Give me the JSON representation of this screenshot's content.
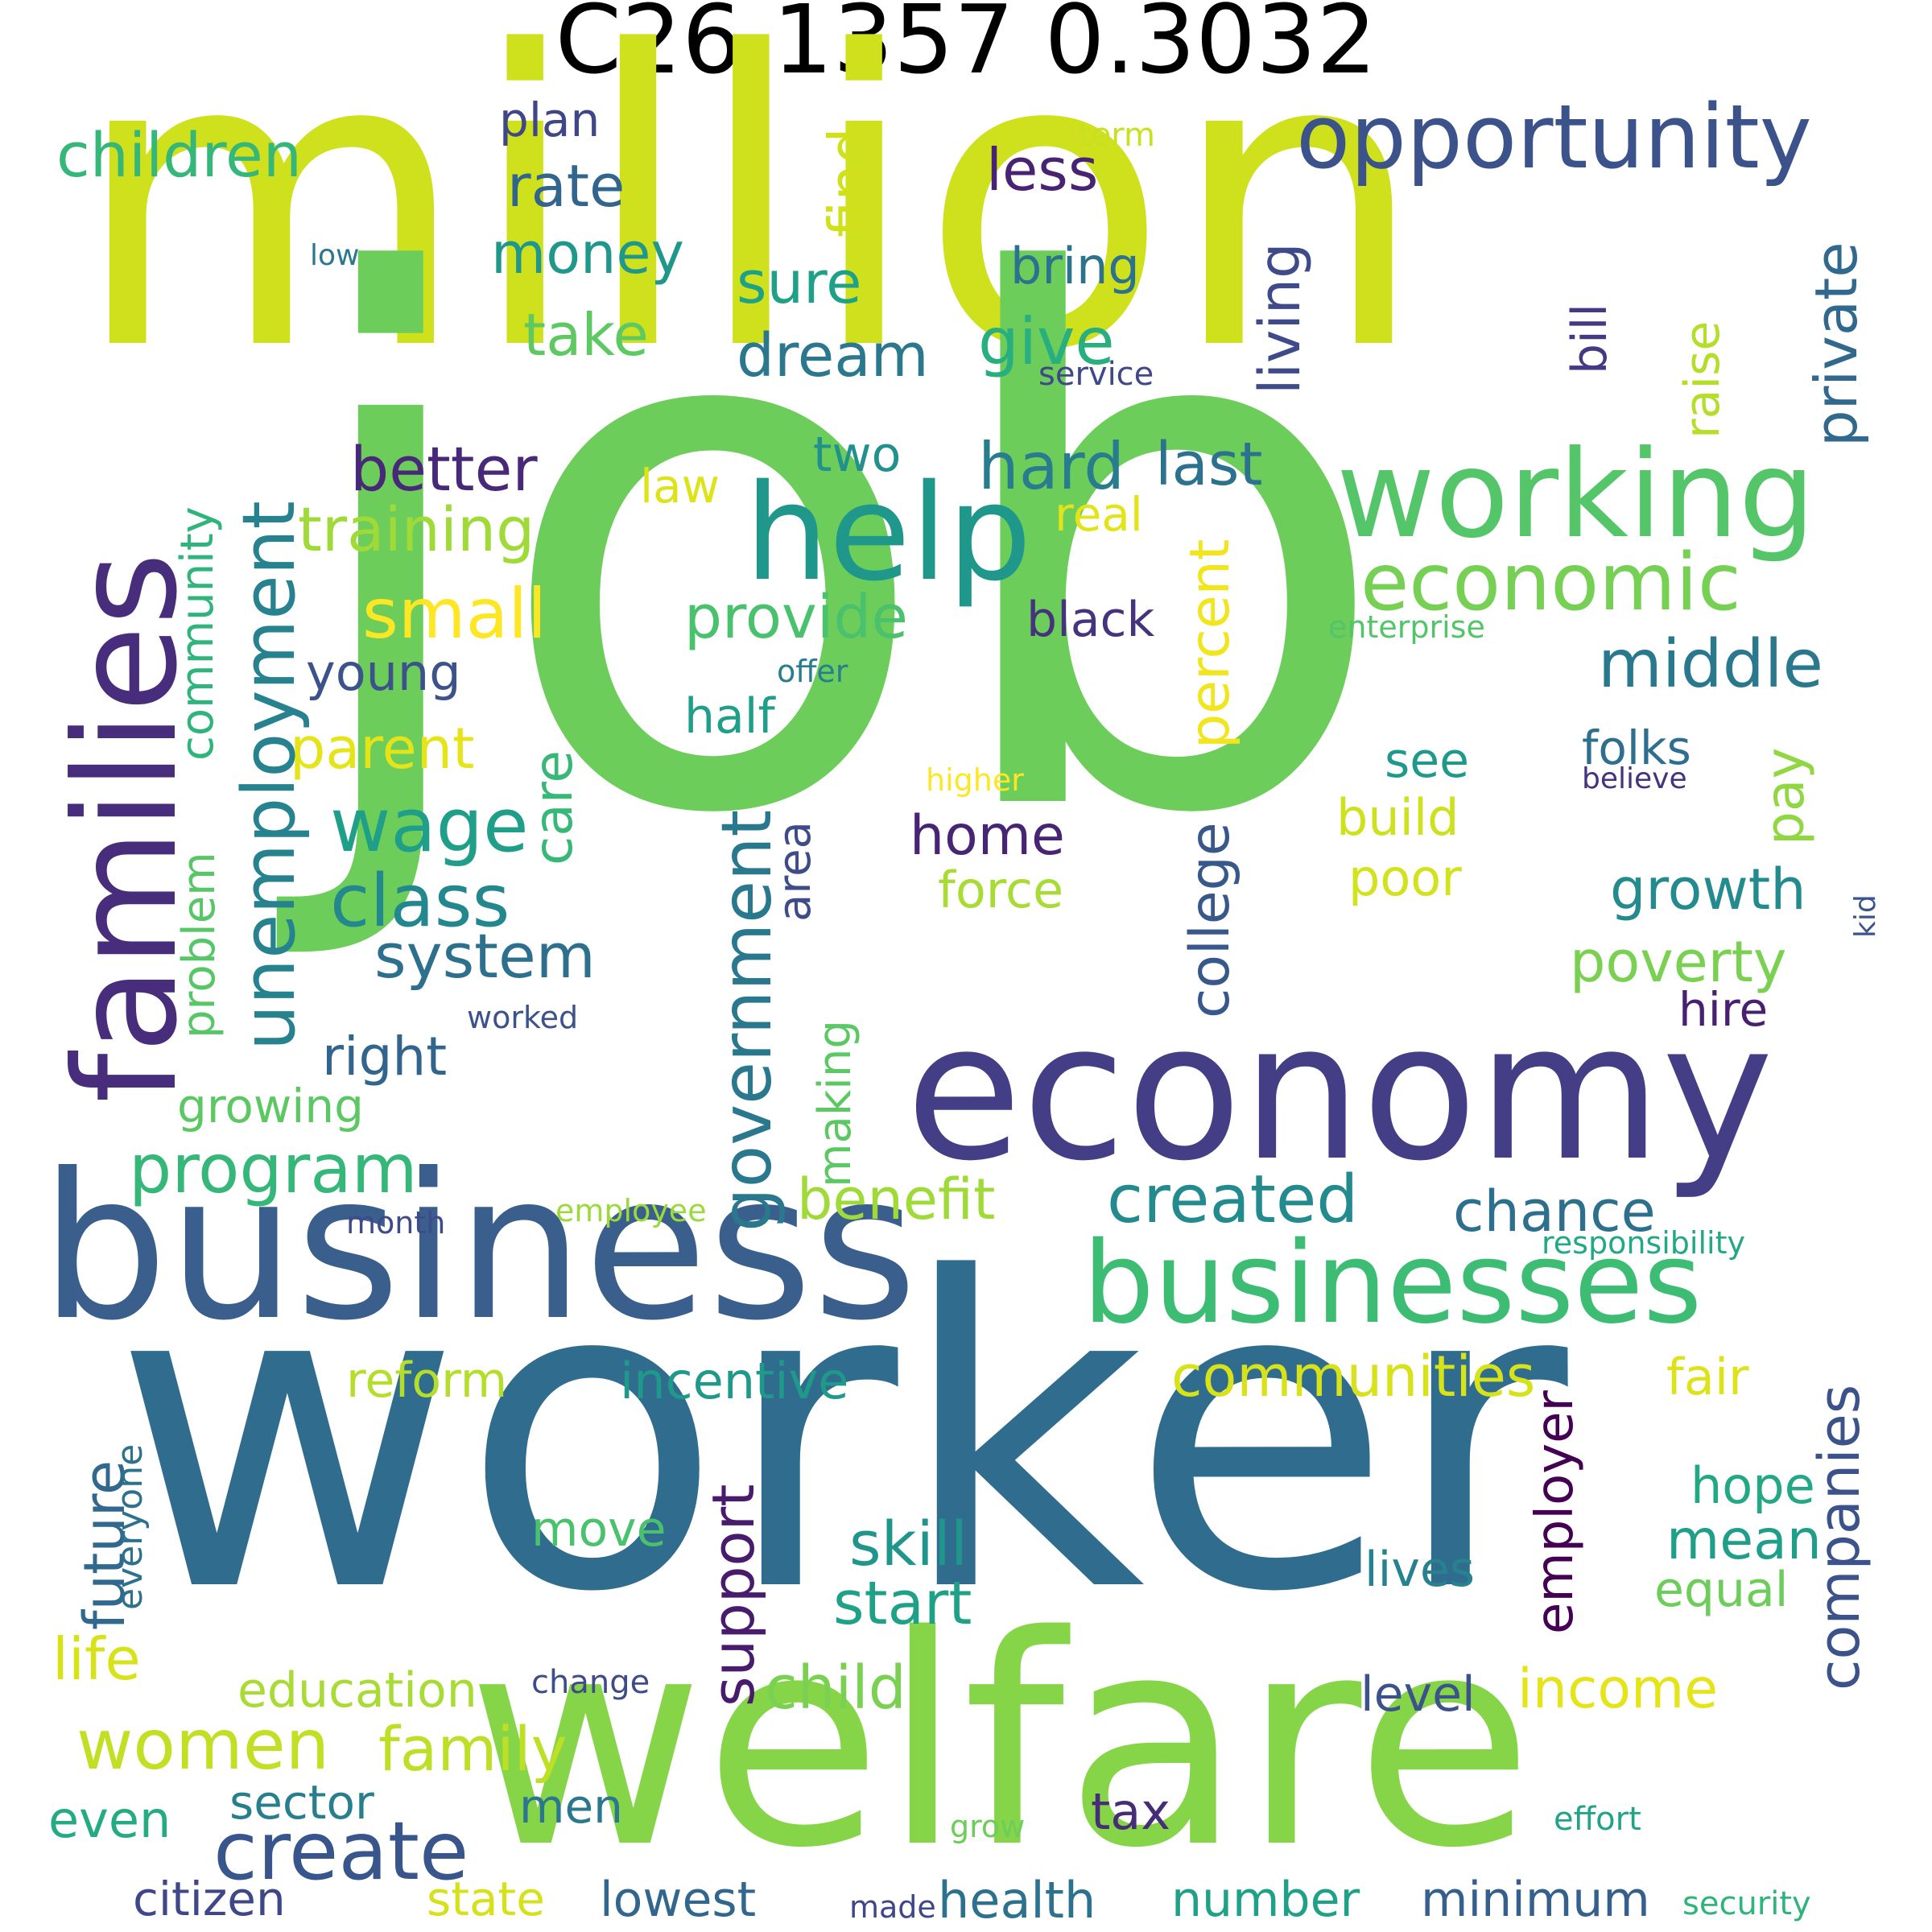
{
  "title": "C26 1357 0.3032",
  "words": [
    {
      "id": "million",
      "text": "million",
      "color": "#cfe11c"
    },
    {
      "id": "job",
      "text": "job",
      "color": "#6ccd5a"
    },
    {
      "id": "worker",
      "text": "worker",
      "color": "#306c8e"
    },
    {
      "id": "welfare",
      "text": "welfare",
      "color": "#86d549"
    },
    {
      "id": "business",
      "text": "business",
      "color": "#3a5f8d"
    },
    {
      "id": "economy",
      "text": "economy",
      "color": "#433e85"
    },
    {
      "id": "businesses",
      "text": "businesses",
      "color": "#3dbc74"
    },
    {
      "id": "families",
      "text": "families",
      "color": "#472d7b"
    },
    {
      "id": "help",
      "text": "help",
      "color": "#1f978b"
    },
    {
      "id": "working",
      "text": "working",
      "color": "#54c568"
    },
    {
      "id": "opportunity",
      "text": "opportunity",
      "color": "#3b528b"
    },
    {
      "id": "economic",
      "text": "economic",
      "color": "#75d054"
    },
    {
      "id": "unemployment",
      "text": "unemployment",
      "color": "#26828e"
    },
    {
      "id": "government",
      "text": "government",
      "color": "#2a788e"
    },
    {
      "id": "middle",
      "text": "middle",
      "color": "#2a788e"
    },
    {
      "id": "created",
      "text": "created",
      "color": "#238a8d"
    },
    {
      "id": "program",
      "text": "program",
      "color": "#35b779"
    },
    {
      "id": "create",
      "text": "create",
      "color": "#39568c"
    },
    {
      "id": "communities",
      "text": "communities",
      "color": "#d8e219"
    },
    {
      "id": "children",
      "text": "children",
      "color": "#35b779"
    },
    {
      "id": "class",
      "text": "class",
      "color": "#23888e"
    },
    {
      "id": "wage",
      "text": "wage",
      "color": "#1f9e89"
    },
    {
      "id": "system",
      "text": "system",
      "color": "#2d708e"
    },
    {
      "id": "small",
      "text": "small",
      "color": "#fde725"
    },
    {
      "id": "training",
      "text": "training",
      "color": "#a0da39"
    },
    {
      "id": "better",
      "text": "better",
      "color": "#482878"
    },
    {
      "id": "provide",
      "text": "provide",
      "color": "#4ac16d"
    },
    {
      "id": "hard",
      "text": "hard",
      "color": "#287c8e"
    },
    {
      "id": "last",
      "text": "last",
      "color": "#2c718e"
    },
    {
      "id": "private",
      "text": "private",
      "color": "#31688e"
    },
    {
      "id": "living",
      "text": "living",
      "color": "#3e4a89"
    },
    {
      "id": "find",
      "text": "find",
      "color": "#d0e11c"
    },
    {
      "id": "give",
      "text": "give",
      "color": "#29af7f"
    },
    {
      "id": "dream",
      "text": "dream",
      "color": "#2a778e"
    },
    {
      "id": "money",
      "text": "money",
      "color": "#1f988b"
    },
    {
      "id": "take",
      "text": "take",
      "color": "#5ec962"
    },
    {
      "id": "rate",
      "text": "rate",
      "color": "#32658e"
    },
    {
      "id": "sure",
      "text": "sure",
      "color": "#1fa187"
    },
    {
      "id": "plan",
      "text": "plan",
      "color": "#3f4788"
    },
    {
      "id": "less",
      "text": "less",
      "color": "#482374"
    },
    {
      "id": "bring",
      "text": "bring",
      "color": "#2c728e"
    },
    {
      "id": "term",
      "text": "term",
      "color": "#c8e020"
    },
    {
      "id": "low",
      "text": "low",
      "color": "#2a788e"
    },
    {
      "id": "service",
      "text": "service",
      "color": "#3f4889"
    },
    {
      "id": "bill",
      "text": "bill",
      "color": "#443983"
    },
    {
      "id": "raise",
      "text": "raise",
      "color": "#b5de2b"
    },
    {
      "id": "two",
      "text": "two",
      "color": "#21918c"
    },
    {
      "id": "law",
      "text": "law",
      "color": "#dde318"
    },
    {
      "id": "real",
      "text": "real",
      "color": "#e2e418"
    },
    {
      "id": "percent",
      "text": "percent",
      "color": "#f1e51d"
    },
    {
      "id": "community",
      "text": "community",
      "color": "#2fb47c"
    },
    {
      "id": "black",
      "text": "black",
      "color": "#46337e"
    },
    {
      "id": "enterprise",
      "text": "enterprise",
      "color": "#52c569"
    },
    {
      "id": "young",
      "text": "young",
      "color": "#3b528b"
    },
    {
      "id": "parent",
      "text": "parent",
      "color": "#e5e419"
    },
    {
      "id": "care",
      "text": "care",
      "color": "#37b878"
    },
    {
      "id": "half",
      "text": "half",
      "color": "#1f9e89"
    },
    {
      "id": "offer",
      "text": "offer",
      "color": "#277f8e"
    },
    {
      "id": "college",
      "text": "college",
      "color": "#38588c"
    },
    {
      "id": "see",
      "text": "see",
      "color": "#1f9a8a"
    },
    {
      "id": "folks",
      "text": "folks",
      "color": "#2e6e8e"
    },
    {
      "id": "pay",
      "text": "pay",
      "color": "#90d743"
    },
    {
      "id": "believe",
      "text": "believe",
      "color": "#46327e"
    },
    {
      "id": "higher",
      "text": "higher",
      "color": "#fde725"
    },
    {
      "id": "home",
      "text": "home",
      "color": "#482475"
    },
    {
      "id": "build",
      "text": "build",
      "color": "#cde11d"
    },
    {
      "id": "area",
      "text": "area",
      "color": "#3e4c8a"
    },
    {
      "id": "force",
      "text": "force",
      "color": "#a8db34"
    },
    {
      "id": "poor",
      "text": "poor",
      "color": "#d2e21b"
    },
    {
      "id": "growth",
      "text": "growth",
      "color": "#238a8d"
    },
    {
      "id": "kid",
      "text": "kid",
      "color": "#3a548c"
    },
    {
      "id": "problem",
      "text": "problem",
      "color": "#56c667"
    },
    {
      "id": "poverty",
      "text": "poverty",
      "color": "#7ad151"
    },
    {
      "id": "right",
      "text": "right",
      "color": "#32658e"
    },
    {
      "id": "hire",
      "text": "hire",
      "color": "#481f71"
    },
    {
      "id": "worked",
      "text": "worked",
      "color": "#3b528b"
    },
    {
      "id": "making",
      "text": "making",
      "color": "#5cc863"
    },
    {
      "id": "growing",
      "text": "growing",
      "color": "#5cc863"
    },
    {
      "id": "benefit",
      "text": "benefit",
      "color": "#a0da39"
    },
    {
      "id": "chance",
      "text": "chance",
      "color": "#2d708e"
    },
    {
      "id": "month",
      "text": "month",
      "color": "#3e4a89"
    },
    {
      "id": "employee",
      "text": "employee",
      "color": "#9bd93c"
    },
    {
      "id": "responsibility",
      "text": "responsibility",
      "color": "#22a884"
    },
    {
      "id": "reform",
      "text": "reform",
      "color": "#b5de2b"
    },
    {
      "id": "incentive",
      "text": "incentive",
      "color": "#1f998a"
    },
    {
      "id": "fair",
      "text": "fair",
      "color": "#dde318"
    },
    {
      "id": "future",
      "text": "future",
      "color": "#31688e"
    },
    {
      "id": "everyone",
      "text": "everyone",
      "color": "#2c728e"
    },
    {
      "id": "support",
      "text": "support",
      "color": "#481b6d"
    },
    {
      "id": "employer",
      "text": "employer",
      "color": "#440154"
    },
    {
      "id": "companies",
      "text": "companies",
      "color": "#3b528b"
    },
    {
      "id": "hope",
      "text": "hope",
      "color": "#22a884"
    },
    {
      "id": "move",
      "text": "move",
      "color": "#4ac16d"
    },
    {
      "id": "skill",
      "text": "skill",
      "color": "#1f958b"
    },
    {
      "id": "mean",
      "text": "mean",
      "color": "#1f9e89"
    },
    {
      "id": "lives",
      "text": "lives",
      "color": "#26828e"
    },
    {
      "id": "start",
      "text": "start",
      "color": "#1fa188"
    },
    {
      "id": "equal",
      "text": "equal",
      "color": "#6ccd5a"
    },
    {
      "id": "life",
      "text": "life",
      "color": "#d8e219"
    },
    {
      "id": "child",
      "text": "child",
      "color": "#7ad151"
    },
    {
      "id": "education",
      "text": "education",
      "color": "#a8db34"
    },
    {
      "id": "change",
      "text": "change",
      "color": "#3e4c8a"
    },
    {
      "id": "level",
      "text": "level",
      "color": "#3b528b"
    },
    {
      "id": "income",
      "text": "income",
      "color": "#e5e419"
    },
    {
      "id": "women",
      "text": "women",
      "color": "#c2df23"
    },
    {
      "id": "family",
      "text": "family",
      "color": "#bddf26"
    },
    {
      "id": "even",
      "text": "even",
      "color": "#25ab82"
    },
    {
      "id": "sector",
      "text": "sector",
      "color": "#277f8e"
    },
    {
      "id": "men",
      "text": "men",
      "color": "#2a778e"
    },
    {
      "id": "tax",
      "text": "tax",
      "color": "#472c7a"
    },
    {
      "id": "grow",
      "text": "grow",
      "color": "#6ccd5a"
    },
    {
      "id": "effort",
      "text": "effort",
      "color": "#20a386"
    },
    {
      "id": "citizen",
      "text": "citizen",
      "color": "#3f4788"
    },
    {
      "id": "state",
      "text": "state",
      "color": "#d5e21a"
    },
    {
      "id": "lowest",
      "text": "lowest",
      "color": "#31678e"
    },
    {
      "id": "made",
      "text": "made",
      "color": "#3f4788"
    },
    {
      "id": "health",
      "text": "health",
      "color": "#2c718e"
    },
    {
      "id": "number",
      "text": "number",
      "color": "#1fa187"
    },
    {
      "id": "minimum",
      "text": "minimum",
      "color": "#355f8d"
    },
    {
      "id": "security",
      "text": "security",
      "color": "#2fb47c"
    }
  ]
}
